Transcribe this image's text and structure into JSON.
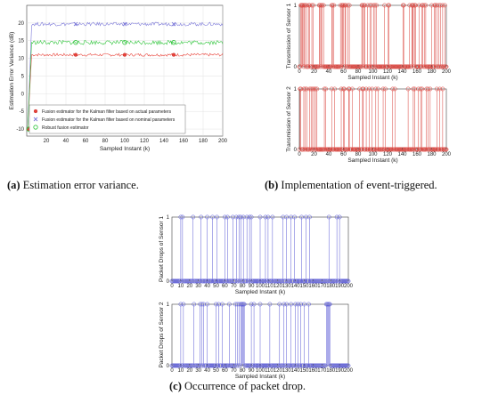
{
  "captions": {
    "a": {
      "tag": "(a)",
      "text": " Estimation error variance."
    },
    "b": {
      "tag": "(b)",
      "text": " Implementation of event-triggered."
    },
    "c": {
      "tag": "(c)",
      "text": " Occurrence of packet drop."
    }
  },
  "chart_data": [
    {
      "id": "a",
      "type": "line",
      "xlabel": "Sampled Instant (k)",
      "ylabel": "Estimation Error Variance (dB)",
      "xlim": [
        0,
        200
      ],
      "ylim": [
        -12,
        25
      ],
      "xticks": [
        20,
        40,
        60,
        80,
        100,
        120,
        140,
        160,
        180,
        200
      ],
      "yticks": [
        -10,
        -5,
        0,
        5,
        10,
        15,
        20
      ],
      "grid": true,
      "legend_position": "bottom-left",
      "series": [
        {
          "name": "Fusion estimator for the Kalman filter based on actual parameters",
          "color": "#e8433a",
          "marker": "*",
          "steady": 11,
          "spread": 0.4,
          "marker_x": [
            2,
            50,
            100,
            150
          ]
        },
        {
          "name": "Fusion estimator for the Kalman filter based on nominal parameters",
          "color": "#7d7ad9",
          "marker": "x",
          "steady": 19.7,
          "spread": 0.5,
          "marker_x": [
            50,
            100,
            150
          ]
        },
        {
          "name": "Robust fusion estimator",
          "color": "#2ec43a",
          "marker": "o",
          "steady": 14.5,
          "spread": 0.6,
          "marker_x": [
            2,
            50,
            100,
            150
          ]
        }
      ]
    },
    {
      "id": "b1",
      "type": "stem",
      "xlabel": "Sampled Instant (k)",
      "ylabel": "Transmission of Sensor 1",
      "color": "#d9413b",
      "xlim": [
        0,
        200
      ],
      "ylim": [
        0,
        1
      ],
      "xticks": [
        0,
        20,
        40,
        60,
        80,
        100,
        120,
        140,
        160,
        180,
        200
      ],
      "yticks": [
        0,
        1
      ],
      "ones": [
        2,
        3,
        4,
        5,
        7,
        8,
        10,
        13,
        14,
        17,
        19,
        27,
        28,
        30,
        31,
        33,
        44,
        45,
        47,
        56,
        58,
        59,
        60,
        62,
        63,
        66,
        68,
        85,
        86,
        88,
        89,
        93,
        96,
        98,
        101,
        103,
        105,
        116,
        121,
        122,
        141,
        142,
        150,
        153,
        154,
        155,
        157,
        158,
        163,
        167,
        168,
        170,
        172,
        180,
        184,
        185,
        187,
        190,
        192,
        195,
        198
      ]
    },
    {
      "id": "b2",
      "type": "stem",
      "xlabel": "Sampled Instant (k)",
      "ylabel": "Transmission of Sensor 2",
      "color": "#d9413b",
      "xlim": [
        0,
        200
      ],
      "ylim": [
        0,
        1
      ],
      "xticks": [
        0,
        20,
        40,
        60,
        80,
        100,
        120,
        140,
        160,
        180,
        200
      ],
      "yticks": [
        0,
        1
      ],
      "ones": [
        1,
        2,
        6,
        8,
        10,
        14,
        16,
        18,
        20,
        22,
        24,
        34,
        36,
        44,
        48,
        57,
        60,
        61,
        67,
        68,
        72,
        82,
        86,
        87,
        91,
        95,
        99,
        104,
        107,
        114,
        117,
        127,
        130,
        148,
        155,
        157,
        162,
        165,
        167,
        173,
        175,
        178,
        187,
        191,
        195
      ]
    },
    {
      "id": "c1",
      "type": "stem",
      "xlabel": "Sampled Instant (k)",
      "ylabel": "Packet Drops of Sensor 1",
      "color": "#5a5ad6",
      "xlim": [
        0,
        200
      ],
      "ylim": [
        0,
        1
      ],
      "xticks": [
        0,
        10,
        20,
        30,
        40,
        50,
        60,
        70,
        80,
        90,
        100,
        110,
        120,
        130,
        140,
        150,
        160,
        170,
        180,
        190,
        200
      ],
      "yticks": [
        0,
        1
      ],
      "ones": [
        10,
        12,
        24,
        33,
        40,
        46,
        51,
        60,
        63,
        69,
        73,
        76,
        78,
        81,
        85,
        88,
        90,
        100,
        106,
        109,
        114,
        126,
        130,
        135,
        139,
        147,
        152,
        156,
        178,
        187,
        190
      ]
    },
    {
      "id": "c2",
      "type": "stem",
      "xlabel": "Sampled Instant (k)",
      "ylabel": "Packet Drops of Sensor 2",
      "color": "#5a5ad6",
      "xlim": [
        0,
        200
      ],
      "ylim": [
        0,
        1
      ],
      "xticks": [
        0,
        10,
        20,
        30,
        40,
        50,
        60,
        70,
        80,
        90,
        100,
        110,
        120,
        130,
        140,
        150,
        160,
        170,
        180,
        190,
        200
      ],
      "yticks": [
        0,
        1
      ],
      "ones": [
        10,
        13,
        25,
        32,
        34,
        36,
        40,
        50,
        53,
        57,
        65,
        72,
        74,
        76,
        78,
        79,
        80,
        81,
        82,
        90,
        93,
        100,
        111,
        122,
        127,
        130,
        135,
        140,
        143,
        146,
        150,
        155,
        175,
        176,
        177,
        178,
        179
      ]
    }
  ]
}
